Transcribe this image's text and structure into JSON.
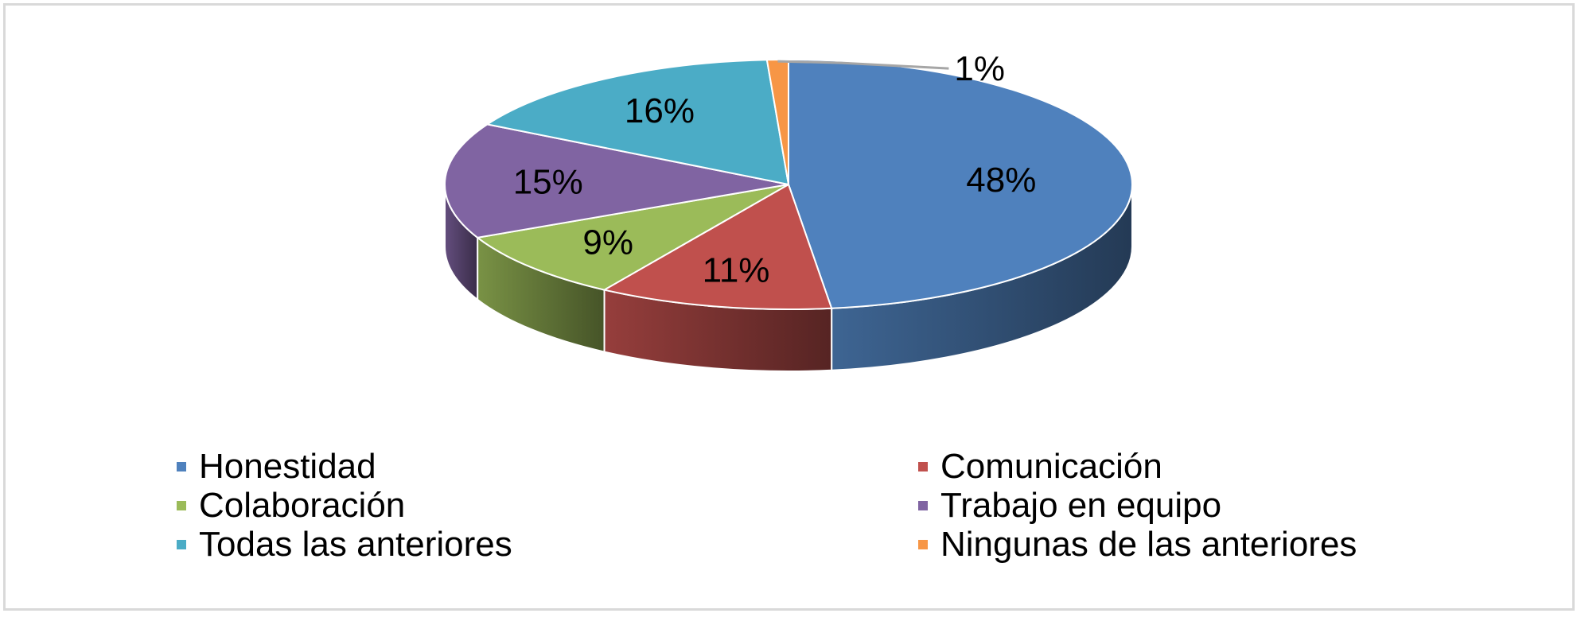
{
  "chart_data": {
    "type": "pie",
    "title": "",
    "style": "3d",
    "legend_position": "bottom",
    "series": [
      {
        "name": "Honestidad",
        "value": 48,
        "label": "48%",
        "color": "#4F81BD"
      },
      {
        "name": "Comunicación",
        "value": 11,
        "label": "11%",
        "color": "#C0504D"
      },
      {
        "name": "Colaboración",
        "value": 9,
        "label": "9%",
        "color": "#9BBB59"
      },
      {
        "name": "Trabajo en equipo",
        "value": 15,
        "label": "15%",
        "color": "#8064A2"
      },
      {
        "name": "Todas las anteriores",
        "value": 16,
        "label": "16%",
        "color": "#4BACC6"
      },
      {
        "name": "Ningunas de las anteriores",
        "value": 1,
        "label": "1%",
        "color": "#F79646"
      }
    ]
  }
}
